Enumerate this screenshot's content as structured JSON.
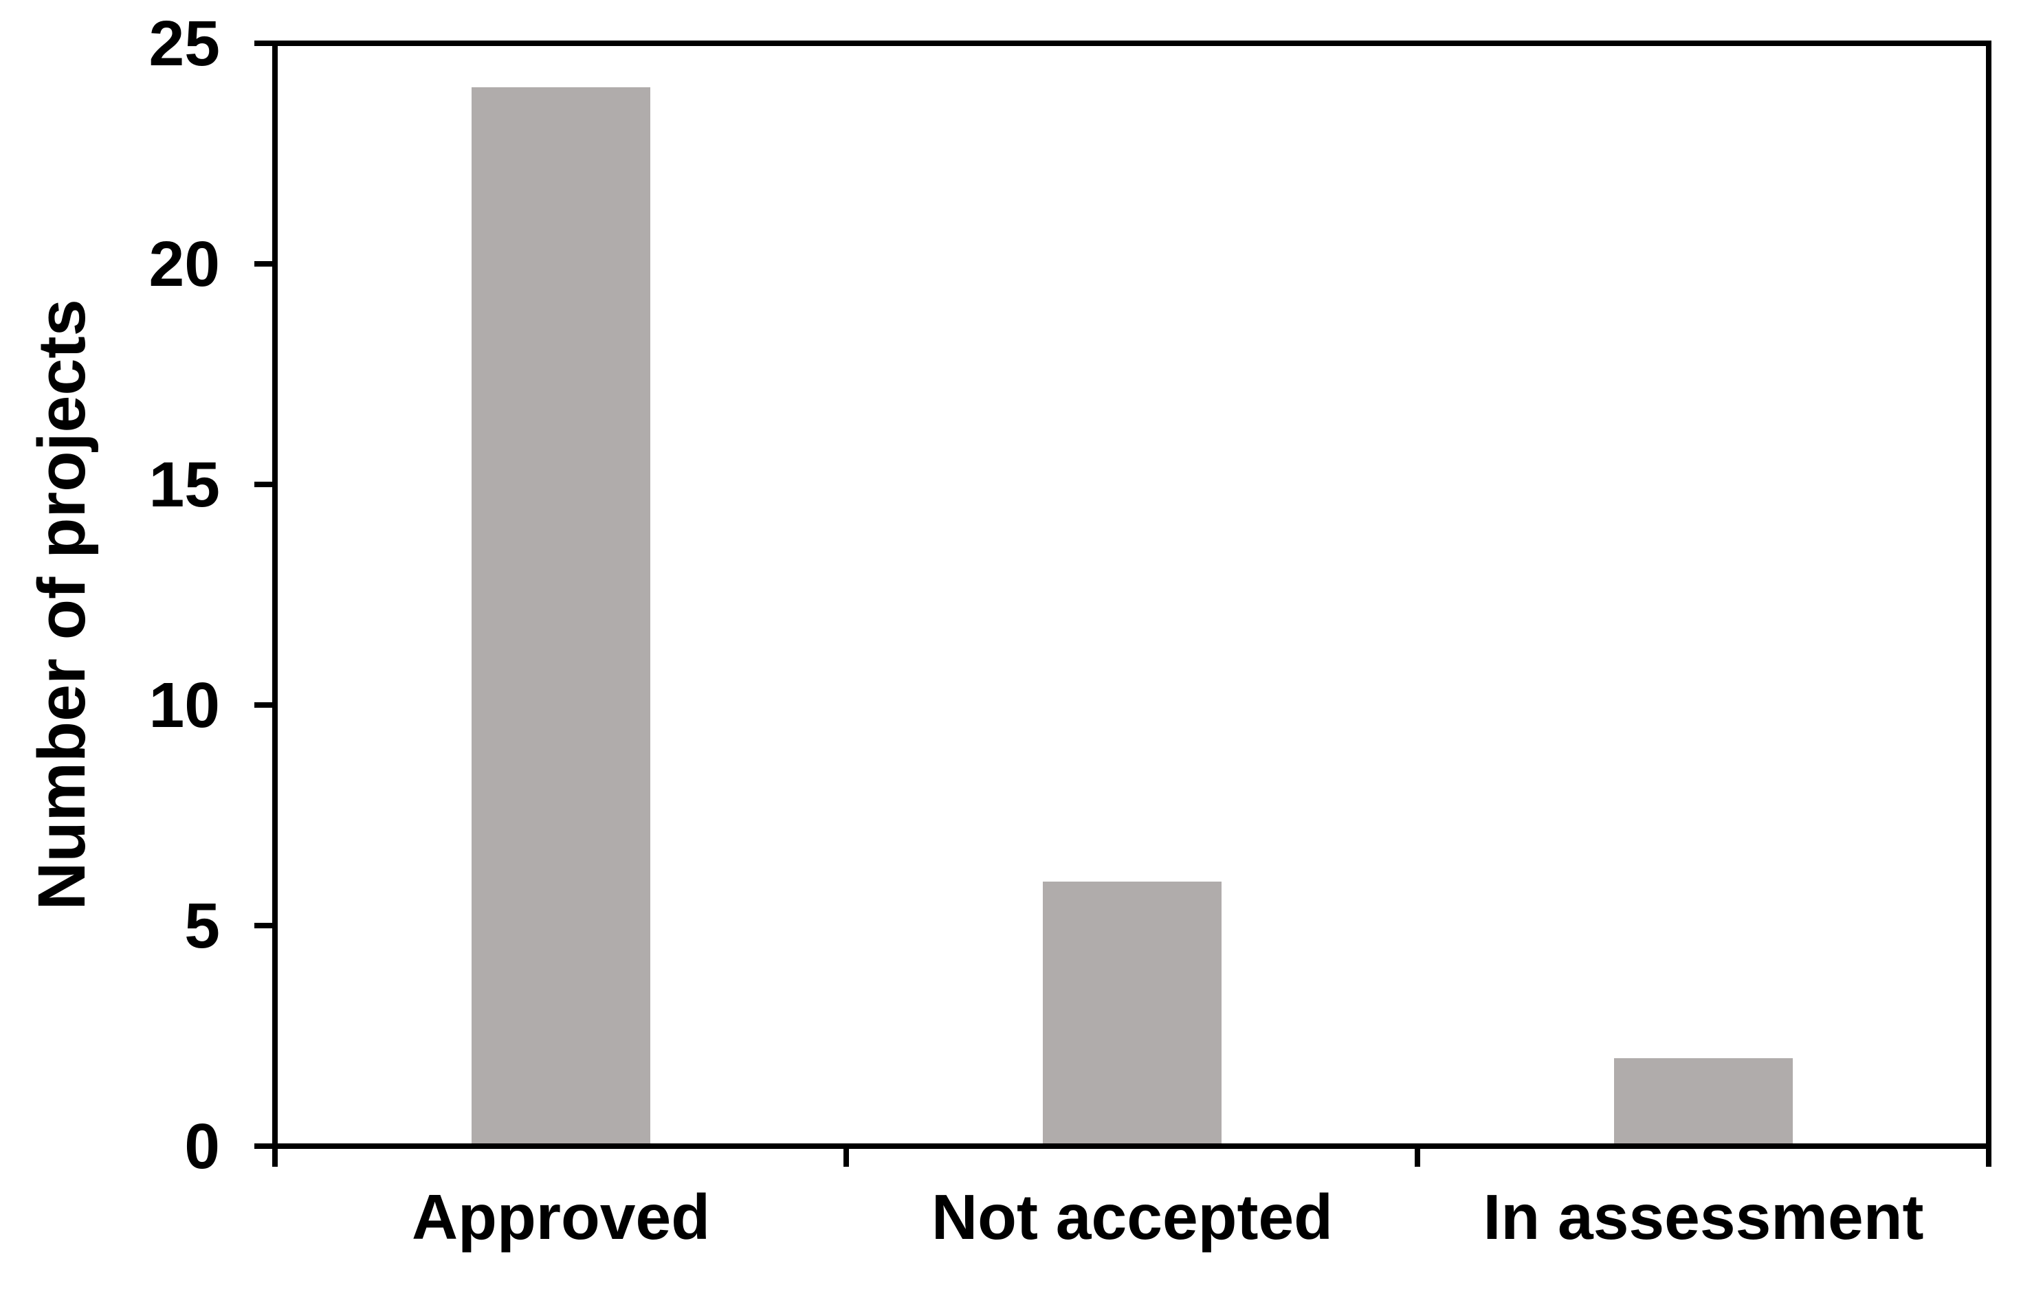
{
  "chart_data": {
    "type": "bar",
    "categories": [
      "Approved",
      "Not accepted",
      "In assessment"
    ],
    "values": [
      24,
      6,
      2
    ],
    "title": "",
    "xlabel": "",
    "ylabel": "Number of projects",
    "ylim": [
      0,
      25
    ],
    "yticks": [
      0,
      5,
      10,
      15,
      20,
      25
    ],
    "grid": false,
    "legend": false,
    "frame": "full-box",
    "bar_color": "#b0acab",
    "axis_color": "#000000",
    "background_color": "#ffffff"
  }
}
